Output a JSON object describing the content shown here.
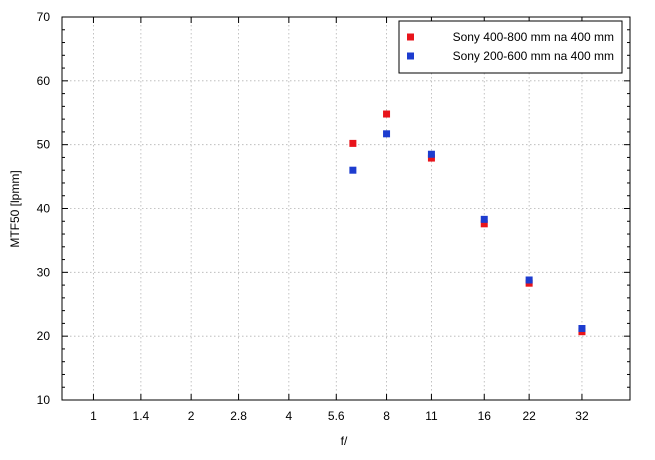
{
  "chart_data": {
    "type": "scatter",
    "title": "",
    "xlabel": "f/",
    "ylabel": "MTF50 [lpmm]",
    "x_scale": "log2",
    "x_ticks": [
      "1",
      "1.4",
      "2",
      "2.8",
      "4",
      "5.6",
      "8",
      "11",
      "16",
      "22",
      "32"
    ],
    "xlim": [
      0.8,
      45
    ],
    "ylim": [
      10,
      70
    ],
    "y_ticks": [
      10,
      20,
      30,
      40,
      50,
      60,
      70
    ],
    "grid": true,
    "legend_position": "top-right",
    "series": [
      {
        "name": "Sony 400-800 mm na 400 mm",
        "color": "#e8141b",
        "points": [
          {
            "x": 6.3,
            "y": 50.2
          },
          {
            "x": 8,
            "y": 54.8
          },
          {
            "x": 11,
            "y": 47.9
          },
          {
            "x": 16,
            "y": 37.6
          },
          {
            "x": 22,
            "y": 28.3
          },
          {
            "x": 32,
            "y": 20.7
          }
        ]
      },
      {
        "name": "Sony 200-600 mm na 400 mm",
        "color": "#1d3ccf",
        "points": [
          {
            "x": 6.3,
            "y": 46.0
          },
          {
            "x": 8,
            "y": 51.7
          },
          {
            "x": 11,
            "y": 48.5
          },
          {
            "x": 16,
            "y": 38.3
          },
          {
            "x": 22,
            "y": 28.8
          },
          {
            "x": 32,
            "y": 21.2
          }
        ]
      }
    ]
  }
}
